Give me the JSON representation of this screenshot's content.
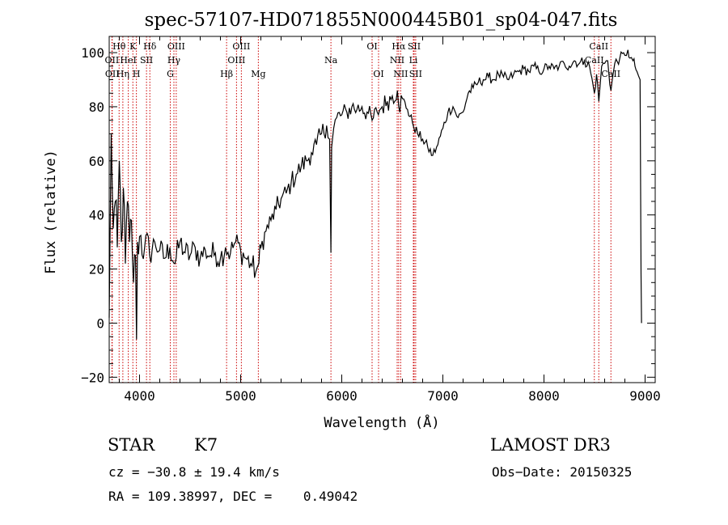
{
  "chart_data": {
    "type": "line",
    "title": "spec-57107-HD071855N000445B01_sp04-047.fits",
    "xlabel": "Wavelength (Å)",
    "ylabel": "Flux (relative)",
    "xlim": [
      3700,
      9100
    ],
    "ylim": [
      -22,
      106
    ],
    "x_ticks": [
      4000,
      5000,
      6000,
      7000,
      8000,
      9000
    ],
    "y_ticks": [
      -20,
      0,
      20,
      40,
      60,
      80,
      100
    ],
    "grid": false,
    "series": [
      {
        "x": [
          3700,
          3720,
          3740,
          3760,
          3780,
          3800,
          3820,
          3840,
          3860,
          3880,
          3900,
          3920,
          3940,
          3960,
          3970,
          3980,
          4000,
          4050,
          4100,
          4150,
          4200,
          4250,
          4300,
          4350,
          4400,
          4450,
          4500,
          4550,
          4600,
          4650,
          4700,
          4750,
          4800,
          4850,
          4900,
          4950,
          5000,
          5050,
          5100,
          5150,
          5180,
          5200,
          5250,
          5300,
          5350,
          5400,
          5450,
          5500,
          5550,
          5600,
          5650,
          5700,
          5750,
          5800,
          5850,
          5880,
          5893,
          5900,
          5920,
          5950,
          6000,
          6050,
          6100,
          6150,
          6200,
          6250,
          6300,
          6350,
          6400,
          6450,
          6500,
          6550,
          6563,
          6600,
          6650,
          6700,
          6750,
          6800,
          6850,
          6900,
          6950,
          7000,
          7050,
          7100,
          7150,
          7200,
          7250,
          7300,
          7350,
          7400,
          7450,
          7500,
          7550,
          7600,
          7650,
          7700,
          7750,
          7800,
          7850,
          7900,
          7950,
          8000,
          8050,
          8100,
          8150,
          8200,
          8250,
          8300,
          8350,
          8400,
          8450,
          8498,
          8520,
          8542,
          8570,
          8600,
          8630,
          8662,
          8700,
          8750,
          8800,
          8830,
          8850,
          8880,
          8900,
          8920,
          8950
        ],
        "y": [
          2,
          70,
          35,
          45,
          28,
          60,
          30,
          50,
          22,
          45,
          30,
          38,
          15,
          25,
          -6,
          30,
          32,
          28,
          25,
          30,
          27,
          24,
          28,
          22,
          30,
          26,
          25,
          28,
          24,
          27,
          25,
          26,
          24,
          28,
          26,
          30,
          27,
          24,
          22,
          19,
          22,
          28,
          34,
          38,
          42,
          46,
          48,
          52,
          55,
          58,
          60,
          63,
          66,
          70,
          73,
          68,
          26,
          65,
          72,
          76,
          77,
          78,
          80,
          79,
          80,
          78,
          75,
          78,
          80,
          82,
          84,
          86,
          80,
          83,
          79,
          74,
          70,
          68,
          65,
          62,
          66,
          72,
          78,
          80,
          76,
          78,
          85,
          87,
          89,
          90,
          91,
          90,
          92,
          91,
          90,
          92,
          93,
          94,
          93,
          95,
          93,
          94,
          95,
          94,
          95,
          96,
          95,
          97,
          96,
          97,
          95,
          85,
          92,
          82,
          95,
          96,
          97,
          86,
          96,
          98,
          99,
          101,
          98,
          97,
          95,
          93,
          90
        ]
      }
    ],
    "line_markers": [
      {
        "label": "OII",
        "x": 3727,
        "row": 1
      },
      {
        "label": "OII",
        "x": 3730,
        "row": 2
      },
      {
        "label": "Hθ",
        "x": 3798,
        "row": 0
      },
      {
        "label": "Hη",
        "x": 3835,
        "row": 2
      },
      {
        "label": "HeI",
        "x": 3889,
        "row": 1
      },
      {
        "label": "K",
        "x": 3934,
        "row": 0
      },
      {
        "label": "SII",
        "x": 4069,
        "row": 1
      },
      {
        "label": "H",
        "x": 3969,
        "row": 2
      },
      {
        "label": "Hδ",
        "x": 4102,
        "row": 0
      },
      {
        "label": "OIII",
        "x": 4363,
        "row": 0
      },
      {
        "label": "Hγ",
        "x": 4340,
        "row": 1
      },
      {
        "label": "G",
        "x": 4304,
        "row": 2
      },
      {
        "label": "Hβ",
        "x": 4861,
        "row": 2
      },
      {
        "label": "OIII",
        "x": 5007,
        "row": 0
      },
      {
        "label": "OIII",
        "x": 4959,
        "row": 1
      },
      {
        "label": "Mg",
        "x": 5175,
        "row": 2
      },
      {
        "label": "Na",
        "x": 5893,
        "row": 1
      },
      {
        "label": "OI",
        "x": 6300,
        "row": 0
      },
      {
        "label": "OI",
        "x": 6364,
        "row": 2
      },
      {
        "label": "Hα",
        "x": 6563,
        "row": 0
      },
      {
        "label": "SII",
        "x": 6716,
        "row": 0
      },
      {
        "label": "NII",
        "x": 6548,
        "row": 1
      },
      {
        "label": "Li",
        "x": 6708,
        "row": 1
      },
      {
        "label": "NII",
        "x": 6583,
        "row": 2
      },
      {
        "label": "SII",
        "x": 6731,
        "row": 2
      },
      {
        "label": "CaII",
        "x": 8542,
        "row": 0
      },
      {
        "label": "CaII",
        "x": 8498,
        "row": 1
      },
      {
        "label": "CaII",
        "x": 8662,
        "row": 2
      }
    ]
  },
  "info": {
    "class": "STAR",
    "subclass": "K7",
    "survey": "LAMOST DR3",
    "cz": "cz = −30.8 ± 19.4 km/s",
    "obs_date": "Obs−Date: 20150325",
    "coords": "RA = 109.38997, DEC =    0.49042"
  },
  "colors": {
    "spectrum": "#000000",
    "line_marker": "#cc0000",
    "axis": "#000000"
  }
}
